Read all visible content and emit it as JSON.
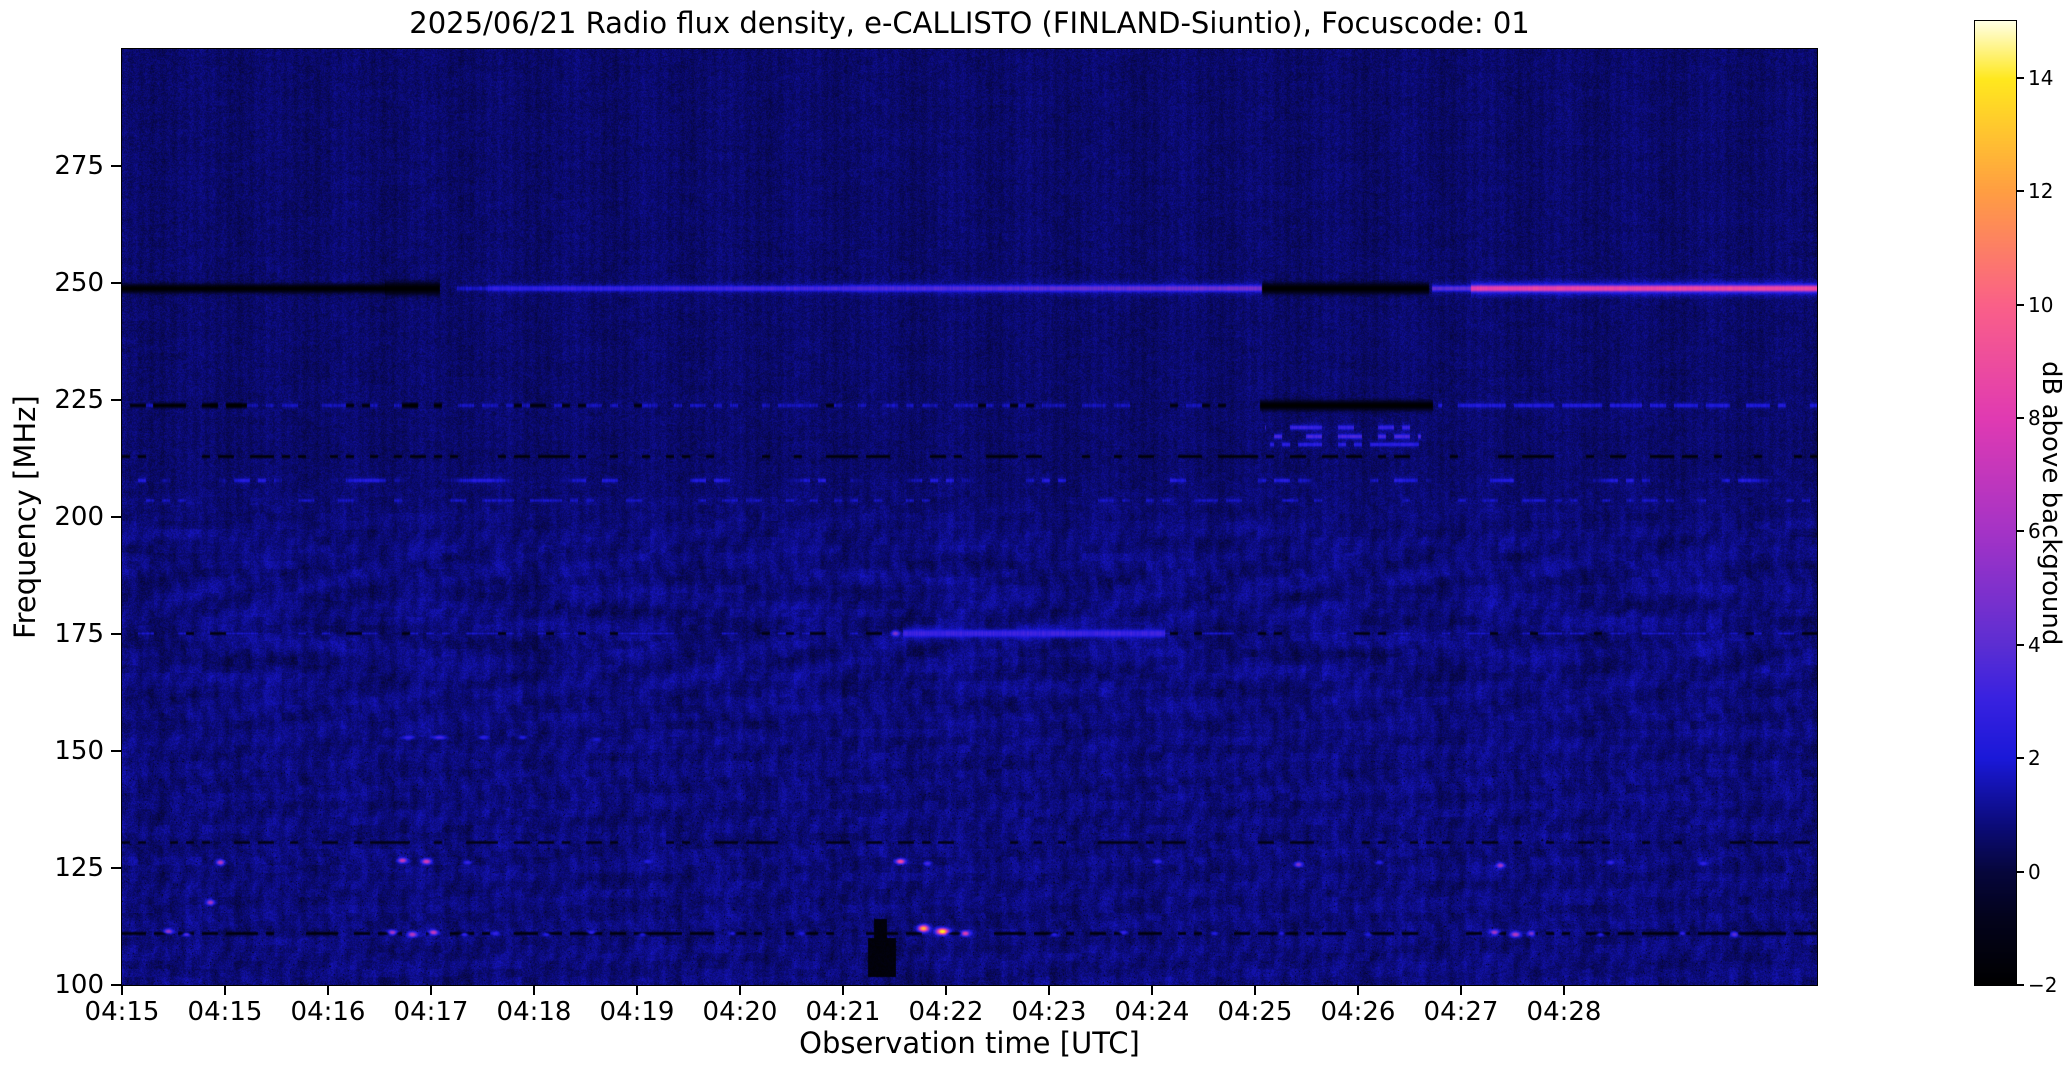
{
  "title": "2025/06/21  Radio flux density, e-CALLISTO (FINLAND-Siuntio), Focuscode: 01",
  "axes": {
    "x_label": "Observation time [UTC]",
    "y_label": "Frequency [MHz]",
    "x_tick_labels": [
      "04:15",
      "04:15",
      "04:16",
      "04:17",
      "04:18",
      "04:19",
      "04:20",
      "04:21",
      "04:22",
      "04:23",
      "04:24",
      "04:25",
      "04:26",
      "04:27",
      "04:28"
    ],
    "y_tick_labels": [
      "275",
      "250",
      "225",
      "200",
      "175",
      "150",
      "125",
      "100"
    ]
  },
  "colorbar": {
    "label": "dB above background",
    "tick_labels": [
      "14",
      "12",
      "10",
      "8",
      "6",
      "4",
      "2",
      "0",
      "−2"
    ],
    "vmin": -2,
    "vmax": 15
  },
  "chart_data": {
    "type": "heatmap",
    "title": "2025/06/21  Radio flux density, e-CALLISTO (FINLAND-Siuntio), Focuscode: 01",
    "date": "2025/06/21",
    "station": "e-CALLISTO FINLAND-Siuntio",
    "focuscode": "01",
    "xlabel": "Observation time [UTC]",
    "ylabel": "Frequency [MHz]",
    "zlabel": "dB above background",
    "x_axis": {
      "tick_labels": [
        "04:15",
        "04:15",
        "04:16",
        "04:17",
        "04:18",
        "04:19",
        "04:20",
        "04:21",
        "04:22",
        "04:23",
        "04:24",
        "04:25",
        "04:26",
        "04:27",
        "04:28"
      ],
      "tick_interval_approx": "1 min"
    },
    "y_axis": {
      "min": 100,
      "max": 300,
      "ticks": [
        100,
        125,
        150,
        175,
        200,
        225,
        250,
        275
      ]
    },
    "z_axis": {
      "min": -2,
      "max": 15
    },
    "background_db": 0.8,
    "grid": false,
    "legend": "colorbar-right",
    "colormap_stops": [
      [
        0.0,
        "#000000"
      ],
      [
        0.07,
        "#03031c"
      ],
      [
        0.118,
        "#06063c"
      ],
      [
        0.165,
        "#0b0b78"
      ],
      [
        0.235,
        "#1a18d8"
      ],
      [
        0.3,
        "#3a22e0"
      ],
      [
        0.353,
        "#5c2ed2"
      ],
      [
        0.47,
        "#a433c6"
      ],
      [
        0.588,
        "#e03ab2"
      ],
      [
        0.706,
        "#fa6088"
      ],
      [
        0.824,
        "#ff9e42"
      ],
      [
        0.94,
        "#ffe81e"
      ],
      [
        1.0,
        "#ffffe2"
      ]
    ],
    "features_note": "horizontal RFI lines; u is time in x-tick units from left edge (1 unit ~ 1 min), u max = 16.46; db = intensity above background",
    "features": [
      {
        "name": "strong-rfi-line",
        "freq_mhz": 249,
        "segments": [
          {
            "u0": 0,
            "u1": 2.55,
            "db": -2,
            "style": "dark",
            "thick": 4.5
          },
          {
            "u0": 2.55,
            "u1": 3.08,
            "db": -2,
            "style": "dark",
            "thick": 6.5
          },
          {
            "u0": 3.25,
            "u1": 3.55,
            "db": 1.8,
            "style": "bright",
            "thick": 2.2
          },
          {
            "u0": 3.55,
            "u1": 7.0,
            "db": 2.6,
            "db2": 3.4,
            "style": "bright",
            "thick": 2.6
          },
          {
            "u0": 7.0,
            "u1": 11.07,
            "db": 3.4,
            "db2": 4.6,
            "style": "bright",
            "thick": 3.0
          },
          {
            "u0": 11.07,
            "u1": 12.68,
            "db": -2,
            "style": "dark",
            "thick": 5.5
          },
          {
            "u0": 12.72,
            "u1": 13.1,
            "db": 4.0,
            "style": "bright",
            "thick": 2.6
          },
          {
            "u0": 13.1,
            "u1": 16.46,
            "db": 8.3,
            "db2": 8.8,
            "style": "bright",
            "thick": 3.2
          }
        ]
      },
      {
        "name": "rfi-line",
        "freq_mhz": 224,
        "segments": [
          {
            "u0": 0,
            "u1": 11.05,
            "db": 1.6,
            "style": "bright",
            "dash": 0.45,
            "thick": 1.8
          },
          {
            "u0": 0,
            "u1": 11.05,
            "db": -1.5,
            "style": "dark",
            "dash": 0.85,
            "thick": 2.2
          },
          {
            "u0": 0.3,
            "u1": 1.2,
            "db": -2,
            "style": "dark",
            "dash": 0.5,
            "thick": 2.6
          },
          {
            "u0": 2.5,
            "u1": 3.1,
            "db": -2,
            "style": "dark",
            "dash": 0.5,
            "thick": 2.6
          },
          {
            "u0": 11.05,
            "u1": 12.72,
            "db": -2,
            "style": "dark",
            "thick": 5.0
          },
          {
            "u0": 12.78,
            "u1": 16.46,
            "db": 2.1,
            "style": "bright",
            "dash": 0.35,
            "thick": 2.0
          }
        ]
      },
      {
        "name": "burst-row",
        "freq_mhz": 219.2,
        "segments": [
          {
            "u0": 11.1,
            "u1": 12.62,
            "db": 3.0,
            "style": "bright",
            "dash": 0.3,
            "thick": 2.0
          }
        ]
      },
      {
        "name": "burst-row",
        "freq_mhz": 217.3,
        "segments": [
          {
            "u0": 11.12,
            "u1": 12.6,
            "db": 3.4,
            "style": "bright",
            "dash": 0.35,
            "thick": 2.0
          }
        ]
      },
      {
        "name": "burst-row",
        "freq_mhz": 215.6,
        "segments": [
          {
            "u0": 11.15,
            "u1": 12.58,
            "db": 2.6,
            "style": "bright",
            "dash": 0.4,
            "thick": 1.8
          }
        ]
      },
      {
        "name": "dark-dotted-row",
        "freq_mhz": 213,
        "segments": [
          {
            "u0": 0,
            "u1": 16.46,
            "db": -1.6,
            "style": "dark",
            "dash": 0.55,
            "thick": 1.6
          }
        ]
      },
      {
        "name": "speckle-row",
        "freq_mhz": 208,
        "segments": [
          {
            "u0": 0,
            "u1": 16.46,
            "db": 2.4,
            "style": "bright",
            "dash": 0.45,
            "thick": 1.8,
            "blob": true
          }
        ]
      },
      {
        "name": "speckle-row",
        "freq_mhz": 203.6,
        "segments": [
          {
            "u0": 0,
            "u1": 16.46,
            "db": 1.7,
            "style": "bright",
            "dash": 0.65,
            "thick": 1.4
          }
        ]
      },
      {
        "name": "rfi-line",
        "freq_mhz": 175.2,
        "segments": [
          {
            "u0": 0,
            "u1": 16.46,
            "db": -1.4,
            "style": "dark",
            "dash": 0.5,
            "thick": 1.5
          },
          {
            "u0": 0,
            "u1": 16.46,
            "db": 1.8,
            "style": "bright",
            "dash": 0.7,
            "thick": 1.4
          },
          {
            "u0": 7.58,
            "u1": 10.12,
            "db": 3.1,
            "style": "bright",
            "thick": 3.4
          }
        ]
      },
      {
        "name": "dark-row",
        "freq_mhz": 130.5,
        "segments": [
          {
            "u0": 0,
            "u1": 16.46,
            "db": -1.2,
            "style": "dark",
            "dash": 0.6,
            "thick": 1.4
          }
        ]
      },
      {
        "name": "dark-row",
        "freq_mhz": 111.2,
        "segments": [
          {
            "u0": 0,
            "u1": 16.46,
            "db": -1.5,
            "style": "dark",
            "dash": 0.45,
            "thick": 1.6
          }
        ]
      }
    ],
    "speckles_format": [
      "freq_mhz",
      "u",
      "db",
      "w_px",
      "h_px"
    ],
    "speckles": [
      [
        153,
        2.78,
        3.0,
        9,
        3
      ],
      [
        153,
        3.08,
        3.6,
        10,
        3
      ],
      [
        153,
        3.5,
        2.6,
        8,
        3
      ],
      [
        153,
        3.88,
        2.3,
        7,
        3
      ],
      [
        152.5,
        4.6,
        2.0,
        7,
        3
      ],
      [
        175.3,
        7.5,
        5.0,
        6,
        4
      ],
      [
        126.3,
        0.95,
        6.5,
        6,
        4
      ],
      [
        126.8,
        2.72,
        7.0,
        7,
        4
      ],
      [
        126.5,
        2.95,
        7.5,
        7,
        4
      ],
      [
        126.2,
        3.35,
        3.0,
        6,
        3
      ],
      [
        126.6,
        5.1,
        2.5,
        6,
        3
      ],
      [
        126.4,
        7.55,
        9.0,
        7,
        4
      ],
      [
        126.0,
        7.82,
        3.5,
        6,
        3
      ],
      [
        126.5,
        10.05,
        3.0,
        6,
        3
      ],
      [
        125.8,
        11.42,
        5.0,
        6,
        4
      ],
      [
        126.3,
        12.2,
        2.6,
        6,
        3
      ],
      [
        125.6,
        13.38,
        6.0,
        6,
        4
      ],
      [
        126.2,
        14.45,
        3.0,
        6,
        3
      ],
      [
        126.0,
        15.35,
        2.8,
        6,
        3
      ],
      [
        117.8,
        0.85,
        6.0,
        6,
        4
      ],
      [
        111.5,
        0.45,
        5.5,
        7,
        4
      ],
      [
        111.0,
        0.62,
        4.0,
        6,
        3
      ],
      [
        111.3,
        2.62,
        6.0,
        7,
        4
      ],
      [
        111.0,
        2.82,
        6.5,
        7,
        4
      ],
      [
        111.4,
        3.02,
        7.0,
        7,
        4
      ],
      [
        111.0,
        3.32,
        3.0,
        6,
        3
      ],
      [
        111.2,
        3.62,
        3.0,
        6,
        3
      ],
      [
        111.0,
        4.12,
        2.5,
        6,
        3
      ],
      [
        111.3,
        4.55,
        3.0,
        6,
        3
      ],
      [
        111.0,
        5.05,
        2.2,
        6,
        3
      ],
      [
        111.2,
        5.92,
        2.6,
        6,
        3
      ],
      [
        111.1,
        6.6,
        2.3,
        6,
        3
      ],
      [
        112.2,
        7.78,
        12.5,
        8,
        5
      ],
      [
        111.6,
        7.96,
        14.0,
        9,
        5
      ],
      [
        111.2,
        8.18,
        8.0,
        7,
        4
      ],
      [
        111.0,
        9.05,
        2.6,
        6,
        3
      ],
      [
        111.3,
        9.72,
        3.0,
        6,
        3
      ],
      [
        111.1,
        10.6,
        2.4,
        6,
        3
      ],
      [
        111.2,
        11.25,
        2.6,
        6,
        3
      ],
      [
        110.8,
        12.1,
        2.2,
        6,
        3
      ],
      [
        111.4,
        13.32,
        6.0,
        7,
        4
      ],
      [
        111.0,
        13.52,
        6.5,
        7,
        4
      ],
      [
        111.2,
        13.68,
        5.0,
        6,
        4
      ],
      [
        111.0,
        14.35,
        2.6,
        6,
        3
      ],
      [
        111.2,
        15.15,
        3.0,
        6,
        3
      ],
      [
        110.9,
        15.65,
        4.0,
        6,
        4
      ]
    ],
    "dark_patches_format": [
      "u0",
      "u1",
      "f0_mhz",
      "f1_mhz"
    ],
    "dark_patches": [
      [
        7.24,
        7.5,
        102,
        110
      ],
      [
        7.3,
        7.42,
        110,
        114
      ]
    ]
  }
}
